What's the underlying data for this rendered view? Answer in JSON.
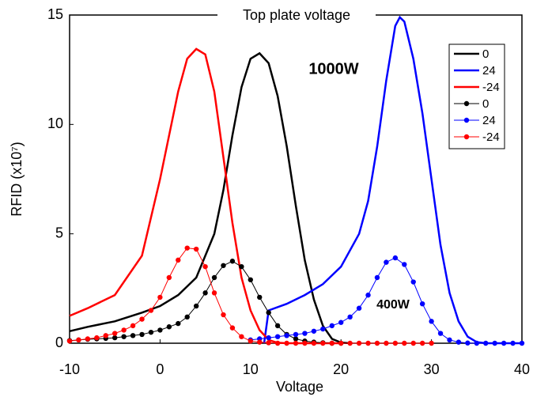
{
  "chart_data": {
    "type": "line",
    "title": "Top plate voltage",
    "x_label": "Voltage",
    "y_label": "RFID (x10⁷)",
    "annotations": [
      "1000W",
      "400W"
    ],
    "xlim": [
      -10,
      40
    ],
    "xticks": [
      -10,
      0,
      10,
      20,
      30,
      40
    ],
    "ylim": [
      0,
      15
    ],
    "yticks": [
      0,
      5,
      10,
      15
    ],
    "grid": false,
    "legend": "upper right",
    "series": [
      {
        "name": "0",
        "color": "#000000",
        "marker": "none",
        "x": [
          -10,
          -8,
          -5,
          -2,
          0,
          2,
          4,
          6,
          7,
          8,
          9,
          10,
          11,
          12,
          13,
          14,
          15,
          16,
          17,
          18,
          19,
          20,
          21
        ],
        "values": [
          0.55,
          0.75,
          1.0,
          1.4,
          1.7,
          2.2,
          3.0,
          5.0,
          7.0,
          9.5,
          11.7,
          13.0,
          13.25,
          12.8,
          11.3,
          9.0,
          6.3,
          3.8,
          2.0,
          0.8,
          0.2,
          0.03,
          0
        ]
      },
      {
        "name": "24",
        "color": "#0000ff",
        "marker": "none",
        "x": [
          11.5,
          12,
          14,
          16,
          18,
          20,
          22,
          23,
          24,
          25,
          26,
          26.5,
          27,
          28,
          29,
          30,
          31,
          32,
          33,
          34,
          35,
          36,
          40
        ],
        "values": [
          0,
          1.5,
          1.8,
          2.2,
          2.7,
          3.5,
          5.0,
          6.5,
          9.0,
          12.0,
          14.5,
          14.9,
          14.7,
          13.0,
          10.5,
          7.5,
          4.5,
          2.3,
          1.0,
          0.3,
          0.05,
          0,
          0
        ]
      },
      {
        "name": "-24",
        "color": "#ff0000",
        "marker": "none",
        "x": [
          -10,
          -8,
          -5,
          -2,
          0,
          2,
          3,
          4,
          5,
          6,
          7,
          8,
          9,
          10,
          11,
          12,
          13,
          14,
          20
        ],
        "values": [
          1.25,
          1.6,
          2.2,
          4.0,
          7.5,
          11.5,
          13.0,
          13.45,
          13.2,
          11.5,
          8.5,
          5.5,
          3.0,
          1.5,
          0.6,
          0.15,
          0.02,
          0,
          0
        ]
      },
      {
        "name": "0",
        "color": "#000000",
        "marker": "circle",
        "x": [
          -10,
          -9,
          -8,
          -7,
          -6,
          -5,
          -4,
          -3,
          -2,
          -1,
          0,
          1,
          2,
          3,
          4,
          5,
          6,
          7,
          8,
          9,
          10,
          11,
          12,
          13,
          14,
          15,
          16,
          17,
          18,
          19,
          20
        ],
        "values": [
          0.12,
          0.15,
          0.18,
          0.2,
          0.22,
          0.25,
          0.3,
          0.35,
          0.4,
          0.5,
          0.6,
          0.75,
          0.9,
          1.2,
          1.7,
          2.3,
          3.0,
          3.55,
          3.75,
          3.5,
          2.9,
          2.1,
          1.4,
          0.8,
          0.4,
          0.2,
          0.1,
          0.05,
          0.02,
          0,
          0
        ]
      },
      {
        "name": "24",
        "color": "#0000ff",
        "marker": "circle",
        "x": [
          10,
          11,
          12,
          13,
          14,
          15,
          16,
          17,
          18,
          19,
          20,
          21,
          22,
          23,
          24,
          25,
          26,
          27,
          28,
          29,
          30,
          31,
          32,
          33,
          34,
          35,
          36,
          37,
          38,
          39,
          40
        ],
        "values": [
          0.15,
          0.2,
          0.25,
          0.3,
          0.35,
          0.4,
          0.45,
          0.55,
          0.65,
          0.8,
          0.95,
          1.2,
          1.6,
          2.2,
          3.0,
          3.7,
          3.9,
          3.6,
          2.8,
          1.8,
          1.0,
          0.45,
          0.15,
          0.05,
          0.01,
          0,
          0,
          0,
          0,
          0,
          0
        ]
      },
      {
        "name": "-24",
        "color": "#ff0000",
        "marker": "circle",
        "x": [
          -10,
          -9,
          -8,
          -7,
          -6,
          -5,
          -4,
          -3,
          -2,
          -1,
          0,
          1,
          2,
          3,
          4,
          5,
          6,
          7,
          8,
          9,
          10,
          11,
          12,
          13,
          14,
          15,
          16,
          17,
          18,
          19,
          20,
          21,
          22,
          23,
          24,
          25,
          26,
          27,
          28,
          29,
          30
        ],
        "values": [
          0.1,
          0.15,
          0.2,
          0.25,
          0.35,
          0.45,
          0.6,
          0.8,
          1.1,
          1.5,
          2.1,
          3.0,
          3.8,
          4.35,
          4.3,
          3.5,
          2.3,
          1.3,
          0.7,
          0.3,
          0.1,
          0.05,
          0.02,
          0,
          0,
          0,
          0,
          0,
          0,
          0,
          0,
          0,
          0,
          0,
          0,
          0,
          0,
          0,
          0,
          0,
          0
        ]
      }
    ]
  }
}
